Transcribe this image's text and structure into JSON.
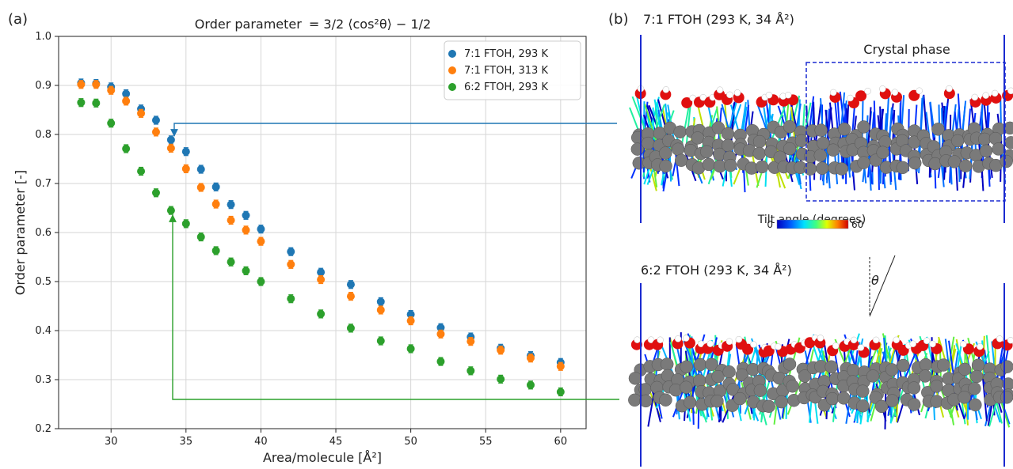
{
  "panel_a": {
    "label": "(a)",
    "title_prefix": "Order parameter",
    "title_formula": "= 3/2 ⟨cos²θ⟩ − 1/2"
  },
  "panel_b": {
    "label": "(b)",
    "top_title": "7:1 FTOH (293 K, 34 Å²)",
    "bottom_title": "6:2 FTOH (293 K, 34 Å²)",
    "crystal_label": "Crystal phase",
    "colorbar_title": "Tilt angle (degrees)",
    "colorbar_min": "0",
    "colorbar_max": "60",
    "theta_label": "θ"
  },
  "colors": {
    "blue": "#1f77b4",
    "orange": "#ff7f0e",
    "green": "#2ca02c",
    "molecule_gray": "#7a7a7a",
    "oxygen_red": "#e01010",
    "frame_blue": "#1a2ad0"
  },
  "chart_data": {
    "type": "scatter",
    "title": "Order parameter = 3/2⟨cos²θ⟩ − 1/2",
    "xlabel": "Area/molecule [Å²]",
    "ylabel": "Order parameter [-]",
    "xlim": [
      26.5,
      61.7
    ],
    "ylim": [
      0.2,
      1.0
    ],
    "xticks": [
      30,
      35,
      40,
      45,
      50,
      55,
      60
    ],
    "yticks": [
      0.2,
      0.3,
      0.4,
      0.5,
      0.6,
      0.7,
      0.8,
      0.9,
      1.0
    ],
    "grid": true,
    "legend_position": "top-right",
    "x": [
      28,
      29,
      30,
      31,
      32,
      33,
      34,
      35,
      36,
      37,
      38,
      39,
      40,
      42,
      44,
      46,
      48,
      50,
      52,
      54,
      56,
      58,
      60
    ],
    "series": [
      {
        "name": "7:1 FTOH, 293 K",
        "color": "#1f77b4",
        "values": [
          0.905,
          0.904,
          0.897,
          0.883,
          0.852,
          0.829,
          0.789,
          0.765,
          0.729,
          0.693,
          0.657,
          0.635,
          0.607,
          0.561,
          0.519,
          0.494,
          0.459,
          0.433,
          0.406,
          0.387,
          0.364,
          0.349,
          0.335
        ]
      },
      {
        "name": "7:1 FTOH, 313 K",
        "color": "#ff7f0e",
        "values": [
          0.902,
          0.902,
          0.89,
          0.868,
          0.843,
          0.805,
          0.772,
          0.73,
          0.692,
          0.658,
          0.625,
          0.605,
          0.582,
          0.535,
          0.504,
          0.47,
          0.442,
          0.42,
          0.393,
          0.378,
          0.36,
          0.344,
          0.327
        ]
      },
      {
        "name": "6:2 FTOH, 293 K",
        "color": "#2ca02c",
        "values": [
          0.865,
          0.864,
          0.823,
          0.771,
          0.725,
          0.681,
          0.645,
          0.618,
          0.591,
          0.563,
          0.54,
          0.522,
          0.5,
          0.465,
          0.434,
          0.405,
          0.379,
          0.363,
          0.337,
          0.318,
          0.301,
          0.289,
          0.275
        ]
      }
    ],
    "annotations": [
      {
        "series": "7:1 FTOH, 293 K",
        "x": 34,
        "y": 0.789,
        "links_to": "top snapshot"
      },
      {
        "series": "6:2 FTOH, 293 K",
        "x": 34,
        "y": 0.645,
        "links_to": "bottom snapshot"
      }
    ]
  }
}
